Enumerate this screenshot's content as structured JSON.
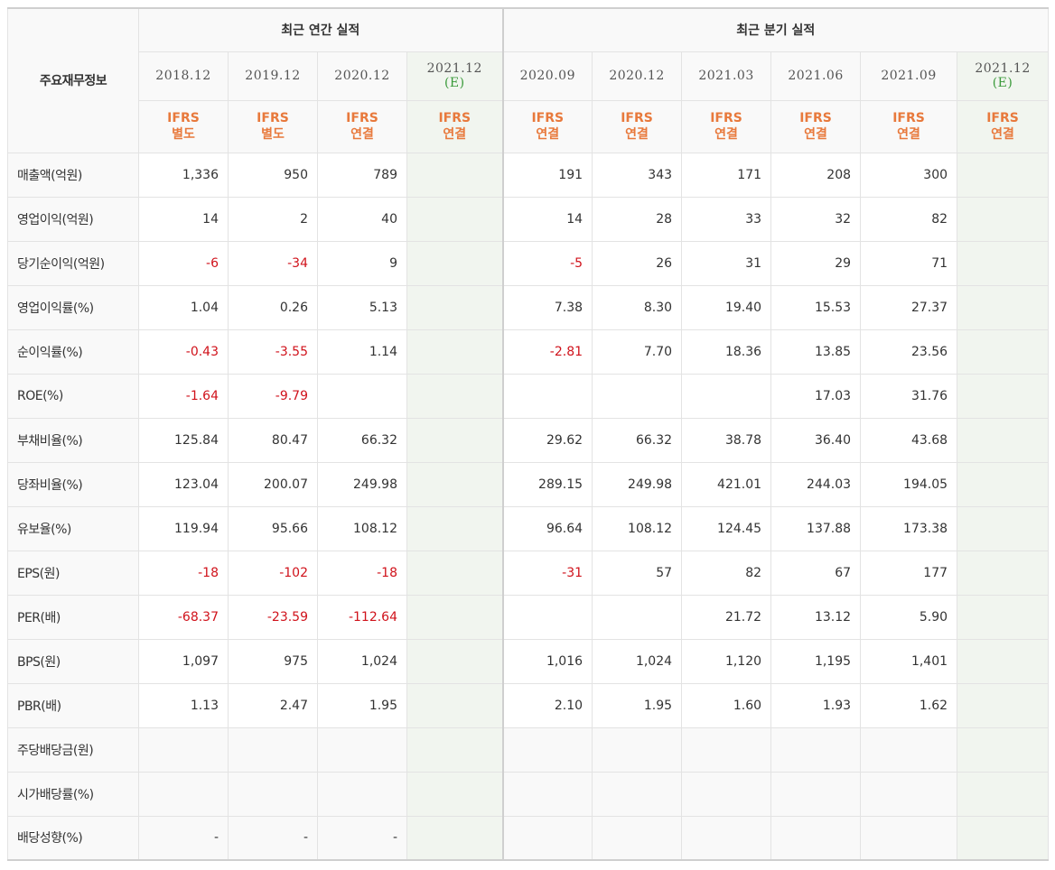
{
  "table": {
    "title": "주요재무정보",
    "groups": [
      {
        "label": "최근 연간 실적"
      },
      {
        "label": "최근 분기 실적"
      }
    ],
    "columns": [
      {
        "date": "2018.12",
        "est": "",
        "ifrs1": "IFRS",
        "ifrs2": "별도"
      },
      {
        "date": "2019.12",
        "est": "",
        "ifrs1": "IFRS",
        "ifrs2": "별도"
      },
      {
        "date": "2020.12",
        "est": "",
        "ifrs1": "IFRS",
        "ifrs2": "연결"
      },
      {
        "date": "2021.12",
        "est": "(E)",
        "ifrs1": "IFRS",
        "ifrs2": "연결"
      },
      {
        "date": "2020.09",
        "est": "",
        "ifrs1": "IFRS",
        "ifrs2": "연결"
      },
      {
        "date": "2020.12",
        "est": "",
        "ifrs1": "IFRS",
        "ifrs2": "연결"
      },
      {
        "date": "2021.03",
        "est": "",
        "ifrs1": "IFRS",
        "ifrs2": "연결"
      },
      {
        "date": "2021.06",
        "est": "",
        "ifrs1": "IFRS",
        "ifrs2": "연결"
      },
      {
        "date": "2021.09",
        "est": "",
        "ifrs1": "IFRS",
        "ifrs2": "연결"
      },
      {
        "date": "2021.12",
        "est": "(E)",
        "ifrs1": "IFRS",
        "ifrs2": "연결"
      }
    ],
    "rows": [
      {
        "label": "매출액(억원)",
        "values": [
          "1,336",
          "950",
          "789",
          "",
          "191",
          "343",
          "171",
          "208",
          "300",
          ""
        ]
      },
      {
        "label": "영업이익(억원)",
        "values": [
          "14",
          "2",
          "40",
          "",
          "14",
          "28",
          "33",
          "32",
          "82",
          ""
        ]
      },
      {
        "label": "당기순이익(억원)",
        "values": [
          "-6",
          "-34",
          "9",
          "",
          "-5",
          "26",
          "31",
          "29",
          "71",
          ""
        ]
      },
      {
        "label": "영업이익률(%)",
        "values": [
          "1.04",
          "0.26",
          "5.13",
          "",
          "7.38",
          "8.30",
          "19.40",
          "15.53",
          "27.37",
          ""
        ]
      },
      {
        "label": "순이익률(%)",
        "values": [
          "-0.43",
          "-3.55",
          "1.14",
          "",
          "-2.81",
          "7.70",
          "18.36",
          "13.85",
          "23.56",
          ""
        ]
      },
      {
        "label": "ROE(%)",
        "values": [
          "-1.64",
          "-9.79",
          "",
          "",
          "",
          "",
          "",
          "17.03",
          "31.76",
          ""
        ]
      },
      {
        "label": "부채비율(%)",
        "values": [
          "125.84",
          "80.47",
          "66.32",
          "",
          "29.62",
          "66.32",
          "38.78",
          "36.40",
          "43.68",
          ""
        ]
      },
      {
        "label": "당좌비율(%)",
        "values": [
          "123.04",
          "200.07",
          "249.98",
          "",
          "289.15",
          "249.98",
          "421.01",
          "244.03",
          "194.05",
          ""
        ]
      },
      {
        "label": "유보율(%)",
        "values": [
          "119.94",
          "95.66",
          "108.12",
          "",
          "96.64",
          "108.12",
          "124.45",
          "137.88",
          "173.38",
          ""
        ]
      },
      {
        "label": "EPS(원)",
        "values": [
          "-18",
          "-102",
          "-18",
          "",
          "-31",
          "57",
          "82",
          "67",
          "177",
          ""
        ]
      },
      {
        "label": "PER(배)",
        "values": [
          "-68.37",
          "-23.59",
          "-112.64",
          "",
          "",
          "",
          "21.72",
          "13.12",
          "5.90",
          ""
        ]
      },
      {
        "label": "BPS(원)",
        "values": [
          "1,097",
          "975",
          "1,024",
          "",
          "1,016",
          "1,024",
          "1,120",
          "1,195",
          "1,401",
          ""
        ]
      },
      {
        "label": "PBR(배)",
        "values": [
          "1.13",
          "2.47",
          "1.95",
          "",
          "2.10",
          "1.95",
          "1.60",
          "1.93",
          "1.62",
          ""
        ]
      },
      {
        "label": "주당배당금(원)",
        "values": [
          "",
          "",
          "",
          "",
          "",
          "",
          "",
          "",
          "",
          ""
        ]
      },
      {
        "label": "시가배당률(%)",
        "values": [
          "",
          "",
          "",
          "",
          "",
          "",
          "",
          "",
          "",
          ""
        ]
      },
      {
        "label": "배당성향(%)",
        "values": [
          "-",
          "-",
          "-",
          "",
          "",
          "",
          "",
          "",
          "",
          ""
        ]
      }
    ]
  },
  "colors": {
    "negative": "#d0121b",
    "ifrs": "#e8793c",
    "estimate": "#3a9a3a",
    "estimate_bg": "#f1f5ef"
  }
}
